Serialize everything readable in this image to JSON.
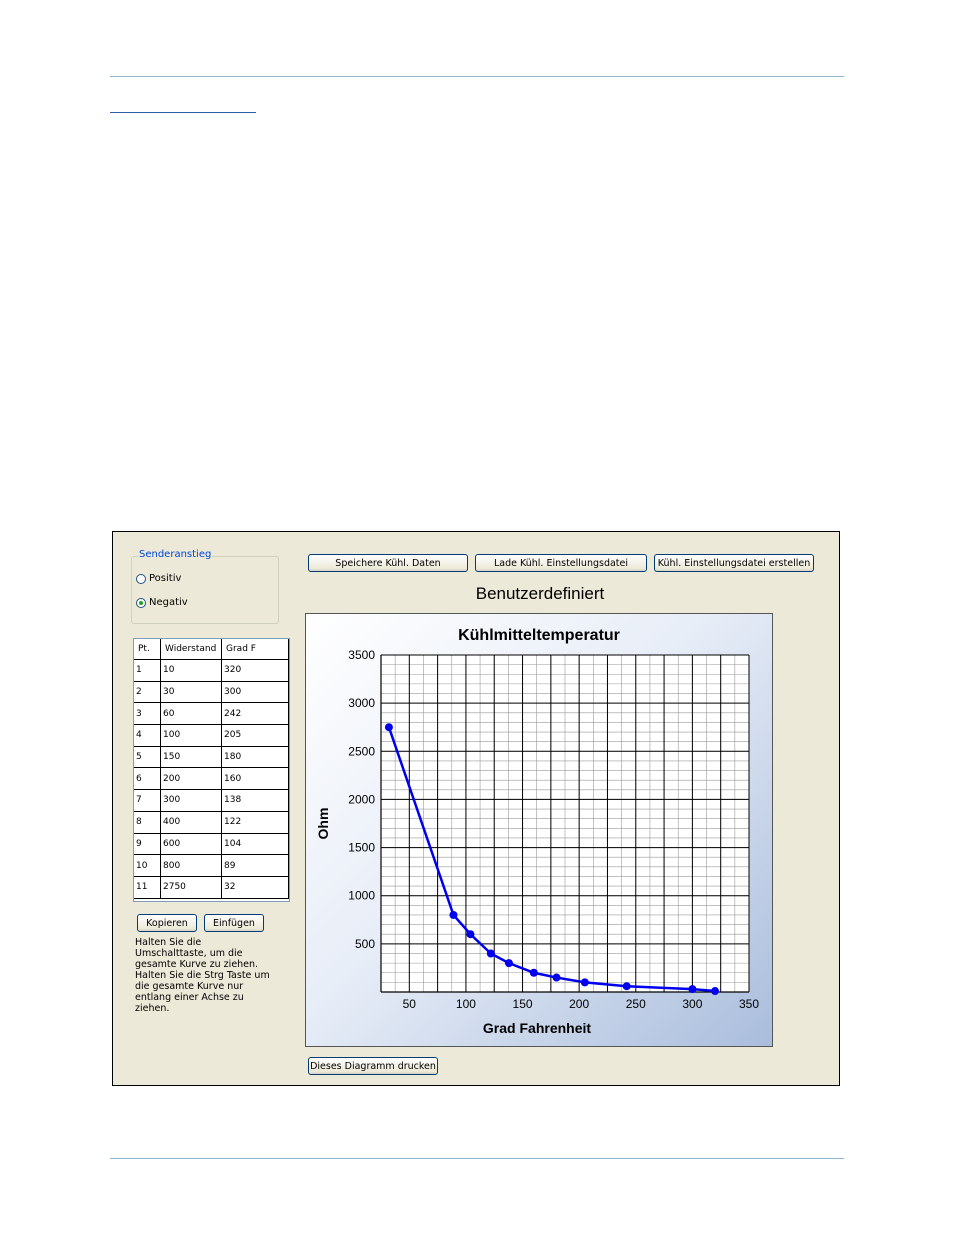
{
  "app": {
    "group_label": "Senderanstieg",
    "radio_positive": "Positiv",
    "radio_negative": "Negativ",
    "selected": "Negativ",
    "buttons": {
      "save": "Speichere Kühl. Daten",
      "load": "Lade Kühl. Einstellungsdatei",
      "create": "Kühl. Einstellungsdatei erstellen",
      "copy": "Kopieren",
      "paste": "Einfügen",
      "print": "Dieses Diagramm drucken"
    },
    "heading": "Benutzerdefiniert",
    "help_text": "Halten Sie die Umschalttaste, um die gesamte Kurve zu ziehen.  Halten Sie die Strg Taste um die gesamte Kurve nur entlang einer Achse zu ziehen.",
    "table": {
      "headers": [
        "Pt.",
        "Widerstand",
        "Grad F"
      ],
      "rows": [
        [
          "1",
          "10",
          "320"
        ],
        [
          "2",
          "30",
          "300"
        ],
        [
          "3",
          "60",
          "242"
        ],
        [
          "4",
          "100",
          "205"
        ],
        [
          "5",
          "150",
          "180"
        ],
        [
          "6",
          "200",
          "160"
        ],
        [
          "7",
          "300",
          "138"
        ],
        [
          "8",
          "400",
          "122"
        ],
        [
          "9",
          "600",
          "104"
        ],
        [
          "10",
          "800",
          "89"
        ],
        [
          "11",
          "2750",
          "32"
        ]
      ]
    }
  },
  "chart_data": {
    "type": "line",
    "title": "Kühlmitteltemperatur",
    "xlabel": "Grad Fahrenheit",
    "ylabel": "Ohm",
    "xlim": [
      25,
      350
    ],
    "ylim": [
      0,
      3500
    ],
    "xticks": [
      50,
      100,
      150,
      200,
      250,
      300,
      350
    ],
    "yticks": [
      500,
      1000,
      1500,
      2000,
      2500,
      3000,
      3500
    ],
    "grid": true,
    "color": "#0000ee",
    "series": [
      {
        "x": [
          32,
          89,
          104,
          122,
          138,
          160,
          180,
          205,
          242,
          300,
          320
        ],
        "y": [
          2750,
          800,
          600,
          400,
          300,
          200,
          150,
          100,
          60,
          30,
          10
        ]
      }
    ]
  }
}
